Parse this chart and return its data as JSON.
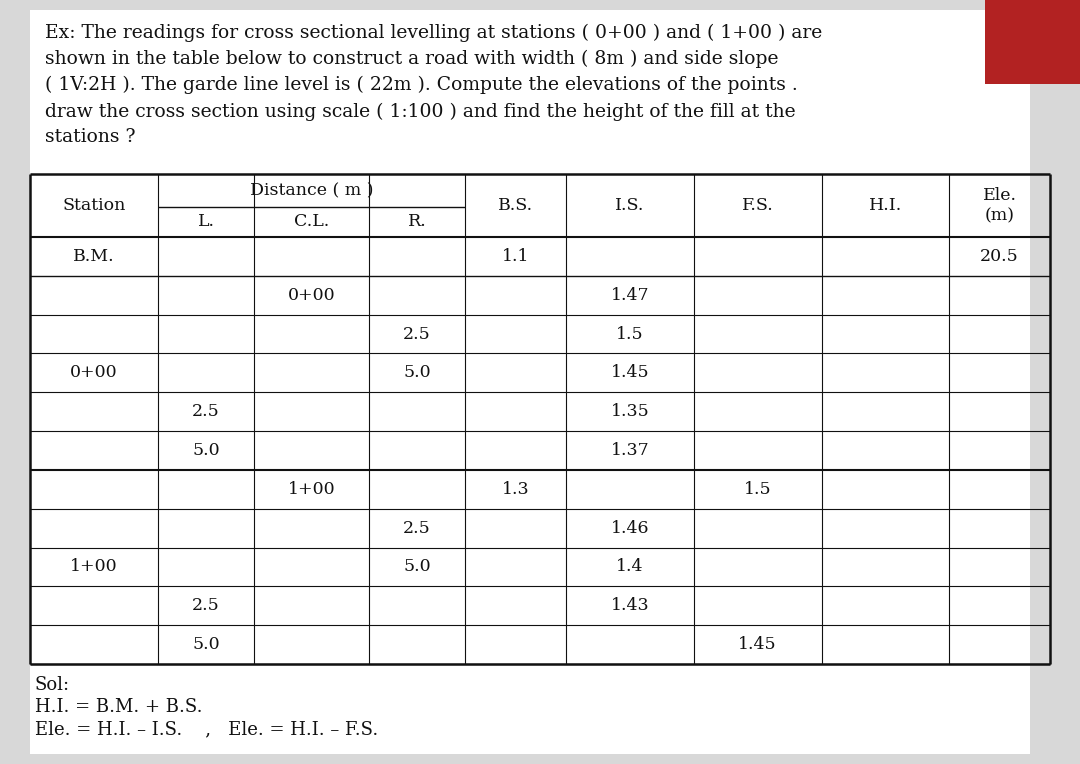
{
  "title_text": "Ex: The readings for cross sectional levelling at stations ( 0+00 ) and ( 1+00 ) are\nshown in the table below to construct a road with width ( 8m ) and side slope\n( 1V:2H ). The garde line level is ( 22m ). Compute the elevations of the points .\ndraw the cross section using scale ( 1:100 ) and find the height of the fill at the\nstations ?",
  "sol_line1": "Sol:",
  "sol_line2": "H.I. = B.M. + B.S.",
  "sol_line3": "Ele. = H.I. – I.S.    ,   Ele. = H.I. – F.S.",
  "bg_color": "#d8d8d8",
  "table_bg": "#ffffff",
  "red_rect_color": "#b22222",
  "font_size_title": 13.5,
  "font_size_table": 12.5,
  "font_size_sol": 13,
  "rows": [
    [
      "B.M.",
      "",
      "",
      "",
      "1.1",
      "",
      "",
      "",
      "20.5"
    ],
    [
      "",
      "",
      "0+00",
      "",
      "",
      "1.47",
      "",
      "",
      ""
    ],
    [
      "",
      "",
      "",
      "2.5",
      "",
      "1.5",
      "",
      "",
      ""
    ],
    [
      "0+00",
      "",
      "",
      "5.0",
      "",
      "1.45",
      "",
      "",
      ""
    ],
    [
      "",
      "2.5",
      "",
      "",
      "",
      "1.35",
      "",
      "",
      ""
    ],
    [
      "",
      "5.0",
      "",
      "",
      "",
      "1.37",
      "",
      "",
      ""
    ],
    [
      "",
      "",
      "1+00",
      "",
      "1.3",
      "",
      "1.5",
      "",
      ""
    ],
    [
      "",
      "",
      "",
      "2.5",
      "",
      "1.46",
      "",
      "",
      ""
    ],
    [
      "1+00",
      "",
      "",
      "5.0",
      "",
      "1.4",
      "",
      "",
      ""
    ],
    [
      "",
      "2.5",
      "",
      "",
      "",
      "1.43",
      "",
      "",
      ""
    ],
    [
      "",
      "5.0",
      "",
      "",
      "",
      "",
      "1.45",
      "",
      ""
    ]
  ]
}
